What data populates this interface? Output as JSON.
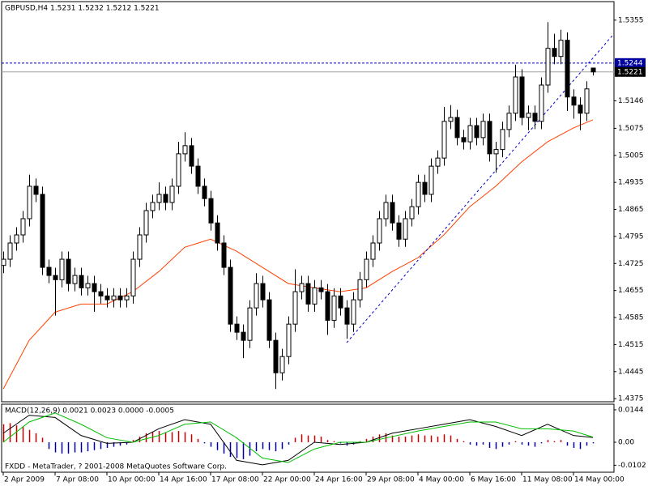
{
  "footer": "FXDD - MetaTrader, ? 2001-2008 MetaQuotes Software Corp.",
  "chart_data": [
    {
      "type": "candlestick",
      "title": "GBPUSD,H4  1.5231 1.5232 1.5212 1.5221",
      "candles": [
        [
          1.472,
          1.4756,
          1.47,
          1.4736
        ],
        [
          1.4736,
          1.4798,
          1.4716,
          1.4778
        ],
        [
          1.4778,
          1.4819,
          1.4758,
          1.4799
        ],
        [
          1.4799,
          1.4861,
          1.4779,
          1.4841
        ],
        [
          1.4841,
          1.4955,
          1.4821,
          1.4925
        ],
        [
          1.4925,
          1.4945,
          1.4884,
          1.4904
        ],
        [
          1.4904,
          1.4924,
          1.4695,
          1.4715
        ],
        [
          1.4715,
          1.4735,
          1.4674,
          1.4694
        ],
        [
          1.4694,
          1.4714,
          1.459,
          1.4683
        ],
        [
          1.4683,
          1.4756,
          1.4663,
          1.4736
        ],
        [
          1.4736,
          1.4756,
          1.4653,
          1.4673
        ],
        [
          1.4673,
          1.4714,
          1.4653,
          1.4694
        ],
        [
          1.4694,
          1.4714,
          1.4642,
          1.4662
        ],
        [
          1.4662,
          1.4693,
          1.4642,
          1.4673
        ],
        [
          1.4673,
          1.4693,
          1.46,
          1.4652
        ],
        [
          1.4652,
          1.4672,
          1.4621,
          1.4641
        ],
        [
          1.4641,
          1.4661,
          1.4611,
          1.4631
        ],
        [
          1.4631,
          1.4661,
          1.4611,
          1.4641
        ],
        [
          1.4641,
          1.4661,
          1.4611,
          1.4631
        ],
        [
          1.4631,
          1.4661,
          1.4611,
          1.4641
        ],
        [
          1.4641,
          1.4756,
          1.4621,
          1.4736
        ],
        [
          1.4736,
          1.4819,
          1.4716,
          1.4799
        ],
        [
          1.4799,
          1.4882,
          1.4779,
          1.4862
        ],
        [
          1.4862,
          1.4903,
          1.4842,
          1.4883
        ],
        [
          1.4883,
          1.4935,
          1.4863,
          1.4904
        ],
        [
          1.4904,
          1.4924,
          1.4863,
          1.4883
        ],
        [
          1.4883,
          1.4945,
          1.4863,
          1.4925
        ],
        [
          1.4925,
          1.504,
          1.4905,
          1.5009
        ],
        [
          1.5009,
          1.5065,
          1.4989,
          1.503
        ],
        [
          1.503,
          1.505,
          1.4957,
          1.4977
        ],
        [
          1.4977,
          1.4997,
          1.4905,
          1.4925
        ],
        [
          1.4925,
          1.4945,
          1.4873,
          1.4893
        ],
        [
          1.4893,
          1.4913,
          1.481,
          1.483
        ],
        [
          1.483,
          1.485,
          1.4758,
          1.4778
        ],
        [
          1.4778,
          1.4798,
          1.4695,
          1.4715
        ],
        [
          1.4715,
          1.4735,
          1.4548,
          1.4568
        ],
        [
          1.4568,
          1.4588,
          1.4527,
          1.4547
        ],
        [
          1.4547,
          1.4567,
          1.448,
          1.4526
        ],
        [
          1.4526,
          1.463,
          1.4506,
          1.461
        ],
        [
          1.461,
          1.47,
          1.459,
          1.4673
        ],
        [
          1.4673,
          1.4693,
          1.4611,
          1.4631
        ],
        [
          1.4631,
          1.4651,
          1.4506,
          1.4526
        ],
        [
          1.4526,
          1.4546,
          1.44,
          1.4442
        ],
        [
          1.4442,
          1.4504,
          1.4422,
          1.4484
        ],
        [
          1.4484,
          1.4588,
          1.4464,
          1.4568
        ],
        [
          1.4568,
          1.471,
          1.4548,
          1.4652
        ],
        [
          1.4652,
          1.4693,
          1.4632,
          1.4673
        ],
        [
          1.4673,
          1.4693,
          1.46,
          1.462
        ],
        [
          1.462,
          1.4682,
          1.46,
          1.4662
        ],
        [
          1.4662,
          1.4682,
          1.4632,
          1.4652
        ],
        [
          1.4652,
          1.4672,
          1.454,
          1.4578
        ],
        [
          1.4578,
          1.4661,
          1.4558,
          1.4641
        ],
        [
          1.4641,
          1.4661,
          1.459,
          1.461
        ],
        [
          1.461,
          1.463,
          1.453,
          1.4568
        ],
        [
          1.4568,
          1.4651,
          1.4548,
          1.4631
        ],
        [
          1.4631,
          1.4703,
          1.4611,
          1.4683
        ],
        [
          1.4683,
          1.4756,
          1.4663,
          1.4736
        ],
        [
          1.4736,
          1.4798,
          1.4716,
          1.4778
        ],
        [
          1.4778,
          1.4861,
          1.4758,
          1.4841
        ],
        [
          1.4841,
          1.4903,
          1.4821,
          1.4883
        ],
        [
          1.4883,
          1.4903,
          1.481,
          1.483
        ],
        [
          1.483,
          1.485,
          1.4768,
          1.4788
        ],
        [
          1.4788,
          1.4861,
          1.4768,
          1.4841
        ],
        [
          1.4841,
          1.4892,
          1.4821,
          1.4872
        ],
        [
          1.4872,
          1.4955,
          1.4852,
          1.4935
        ],
        [
          1.4935,
          1.4955,
          1.4884,
          1.4904
        ],
        [
          1.4904,
          1.4997,
          1.4884,
          1.4977
        ],
        [
          1.4977,
          1.5018,
          1.4957,
          1.4998
        ],
        [
          1.4998,
          1.513,
          1.4978,
          1.5093
        ],
        [
          1.5093,
          1.5135,
          1.5073,
          1.5103
        ],
        [
          1.5103,
          1.5123,
          1.5031,
          1.5051
        ],
        [
          1.5051,
          1.5071,
          1.502,
          1.504
        ],
        [
          1.504,
          1.5102,
          1.502,
          1.5082
        ],
        [
          1.5082,
          1.5102,
          1.5031,
          1.5051
        ],
        [
          1.5051,
          1.5113,
          1.5031,
          1.5093
        ],
        [
          1.5093,
          1.5113,
          1.4989,
          1.5009
        ],
        [
          1.5009,
          1.504,
          1.496,
          1.502
        ],
        [
          1.502,
          1.5092,
          1.5,
          1.5072
        ],
        [
          1.5072,
          1.5134,
          1.5052,
          1.5114
        ],
        [
          1.5114,
          1.524,
          1.5094,
          1.5208
        ],
        [
          1.5208,
          1.5228,
          1.5083,
          1.5103
        ],
        [
          1.5103,
          1.5134,
          1.507,
          1.5114
        ],
        [
          1.5114,
          1.5134,
          1.5073,
          1.5093
        ],
        [
          1.5093,
          1.5207,
          1.5073,
          1.5187
        ],
        [
          1.5187,
          1.535,
          1.5167,
          1.5282
        ],
        [
          1.5282,
          1.532,
          1.5241,
          1.5261
        ],
        [
          1.5261,
          1.533,
          1.5241,
          1.5303
        ],
        [
          1.5303,
          1.5323,
          1.512,
          1.5156
        ],
        [
          1.5156,
          1.5176,
          1.51,
          1.5135
        ],
        [
          1.5135,
          1.5155,
          1.507,
          1.5114
        ],
        [
          1.5114,
          1.5197,
          1.5094,
          1.5177
        ],
        [
          1.5231,
          1.5232,
          1.5212,
          1.5221
        ]
      ],
      "bull_color": "#ffffff",
      "bear_color": "#000000",
      "outline_color": "#000000",
      "xlim": [
        -0.25,
        94.25
      ],
      "xticks": [
        {
          "value": 0,
          "label": "2 Apr 2009"
        },
        {
          "value": 8,
          "label": "7 Apr 08:00"
        },
        {
          "value": 16,
          "label": "10 Apr 00:00"
        },
        {
          "value": 24,
          "label": "14 Apr 16:00"
        },
        {
          "value": 32,
          "label": "17 Apr 08:00"
        },
        {
          "value": 40,
          "label": "22 Apr 00:00"
        },
        {
          "value": 48,
          "label": "24 Apr 16:00"
        },
        {
          "value": 56,
          "label": "29 Apr 08:00"
        },
        {
          "value": 64,
          "label": "4 May 00:00"
        },
        {
          "value": 72,
          "label": "6 May 16:00"
        },
        {
          "value": 80,
          "label": "11 May 08:00"
        },
        {
          "value": 88,
          "label": "14 May 00:00"
        }
      ],
      "ylim": [
        1.4367,
        1.5403
      ],
      "yticks": [
        1.5355,
        1.5146,
        1.5075,
        1.5005,
        1.4935,
        1.4865,
        1.4795,
        1.4725,
        1.4655,
        1.4585,
        1.4515,
        1.4445,
        1.4375
      ],
      "ma": {
        "color": "#ff4000",
        "x": [
          0,
          4,
          8,
          12,
          16,
          20,
          24,
          28,
          32,
          36,
          40,
          44,
          48,
          52,
          56,
          60,
          64,
          68,
          72,
          76,
          80,
          84,
          88,
          91
        ],
        "values": [
          1.44,
          1.4526,
          1.4599,
          1.462,
          1.462,
          1.4652,
          1.4704,
          1.4767,
          1.4788,
          1.4757,
          1.4715,
          1.4673,
          1.4662,
          1.4652,
          1.4662,
          1.4704,
          1.474,
          1.4799,
          1.4872,
          1.4925,
          1.4988,
          1.504,
          1.5076,
          1.5097
        ]
      },
      "trendline": {
        "color": "#0000cc",
        "x": [
          53,
          94
        ],
        "values": [
          1.452,
          1.5315
        ]
      },
      "price_lines": [
        {
          "value": 1.5244,
          "color": "#0000cc",
          "label_color": "#0000a0",
          "dashed": true
        },
        {
          "value": 1.5221,
          "color": "#a0a0a0",
          "label_color": "#000000",
          "dashed": false
        }
      ]
    },
    {
      "type": "macd",
      "title": "MACD(12,26,9) 0.0021 0.0023 0.0000 -0.0005",
      "xlim": [
        -0.25,
        94.25
      ],
      "ylim": [
        -0.0133,
        0.0169
      ],
      "yticks": [
        0.0144,
        {
          "value": 0,
          "label": "0.00"
        },
        -0.0102
      ],
      "histogram": {
        "up_color": "#c00000",
        "down_color": "#0000a0",
        "values": [
          0.008,
          0.0085,
          0.0075,
          0.007,
          0.0055,
          0.004,
          0.002,
          -0.003,
          -0.0045,
          -0.005,
          -0.005,
          -0.0045,
          -0.0045,
          -0.004,
          -0.0035,
          -0.003,
          -0.0025,
          -0.002,
          -0.0015,
          -0.001,
          0.001,
          0.0025,
          0.004,
          0.0045,
          0.005,
          0.0045,
          0.0045,
          0.005,
          0.0045,
          0.0035,
          0.0015,
          -0.0005,
          -0.002,
          -0.0035,
          -0.005,
          -0.0065,
          -0.007,
          -0.0075,
          -0.006,
          -0.004,
          -0.003,
          -0.0035,
          -0.004,
          -0.003,
          -0.001,
          0.002,
          0.0035,
          0.003,
          0.003,
          0.0025,
          0.001,
          0.0005,
          -0.0005,
          -0.0015,
          -0.001,
          0.0005,
          0.0015,
          0.0025,
          0.0035,
          0.004,
          0.003,
          0.0025,
          0.0025,
          0.003,
          0.0035,
          0.003,
          0.003,
          0.0025,
          0.0035,
          0.003,
          0.0015,
          0.0005,
          -0.001,
          -0.0015,
          -0.001,
          -0.0025,
          -0.003,
          -0.002,
          -0.001,
          0.0005,
          -0.001,
          -0.0015,
          -0.002,
          -0.0005,
          0.001,
          0.0005,
          0.001,
          -0.0015,
          -0.0025,
          -0.003,
          -0.0015,
          -0.0005
        ]
      },
      "series": [
        {
          "color": "#000000",
          "x": [
            0,
            4,
            8,
            12,
            16,
            20,
            24,
            28,
            32,
            36,
            40,
            44,
            48,
            52,
            56,
            60,
            64,
            68,
            72,
            76,
            80,
            84,
            88,
            91
          ],
          "values": [
            0.004,
            0.012,
            0.011,
            0.003,
            -0.0005,
            0.0,
            0.006,
            0.01,
            0.008,
            -0.008,
            -0.01,
            -0.008,
            0.0,
            -0.001,
            0.0,
            0.004,
            0.006,
            0.008,
            0.01,
            0.007,
            0.003,
            0.008,
            0.003,
            0.0021
          ]
        },
        {
          "color": "#00c000",
          "x": [
            0,
            4,
            8,
            12,
            16,
            20,
            24,
            28,
            32,
            36,
            40,
            44,
            48,
            52,
            56,
            60,
            64,
            68,
            72,
            76,
            80,
            84,
            88,
            91
          ],
          "values": [
            0.0,
            0.009,
            0.013,
            0.008,
            0.002,
            0.0,
            0.003,
            0.008,
            0.009,
            0.002,
            -0.007,
            -0.009,
            -0.003,
            0.0,
            0.0,
            0.0025,
            0.005,
            0.007,
            0.009,
            0.009,
            0.006,
            0.006,
            0.005,
            0.0023
          ]
        }
      ]
    }
  ]
}
